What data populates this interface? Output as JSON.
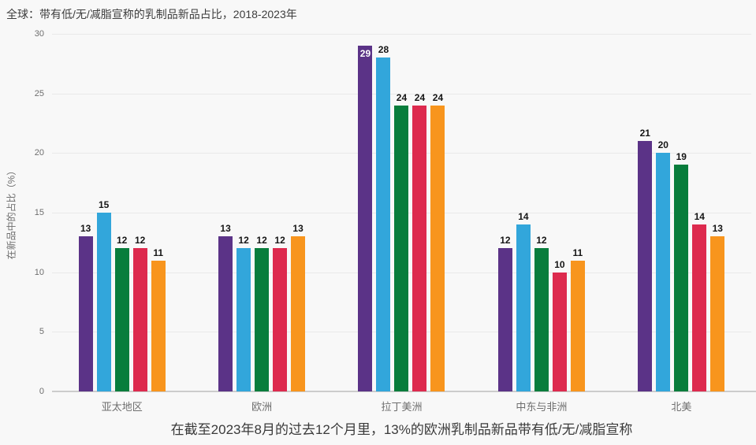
{
  "chart": {
    "title": "全球：带有低/无/减脂宣称的乳制品新品占比，2018-2023年",
    "ylabel": "在新品中的占比（%）",
    "caption": "在截至2023年8月的过去12个月里，13%的欧洲乳制品新品带有低/无/减脂宣称"
  },
  "chart_data": {
    "type": "bar",
    "title": "全球：带有低/无/减脂宣称的乳制品新品占比，2018-2023年",
    "ylabel": "在新品中的占比（%）",
    "xlabel": "",
    "caption": "在截至2023年8月的过去12个月里，13%的欧洲乳制品新品带有低/无/减脂宣称",
    "categories": [
      "亚太地区",
      "欧洲",
      "拉丁美洲",
      "中东与非洲",
      "北美"
    ],
    "series": [
      {
        "name": "series-purple",
        "color": "#5b3387",
        "values": [
          13,
          13,
          29,
          12,
          21
        ]
      },
      {
        "name": "series-blue",
        "color": "#32a6db",
        "values": [
          15,
          12,
          28,
          14,
          20
        ]
      },
      {
        "name": "series-green",
        "color": "#087d3c",
        "values": [
          12,
          12,
          24,
          12,
          19
        ]
      },
      {
        "name": "series-red",
        "color": "#dd2a4e",
        "values": [
          12,
          12,
          24,
          10,
          14
        ]
      },
      {
        "name": "series-orange",
        "color": "#f8951d",
        "values": [
          11,
          13,
          24,
          11,
          13
        ]
      }
    ],
    "ylim": [
      0,
      30
    ],
    "yticks": [
      0,
      5,
      10,
      15,
      20,
      25,
      30
    ],
    "grid": true,
    "legend": false,
    "value_labels": true,
    "background": "#f8f8f8"
  }
}
